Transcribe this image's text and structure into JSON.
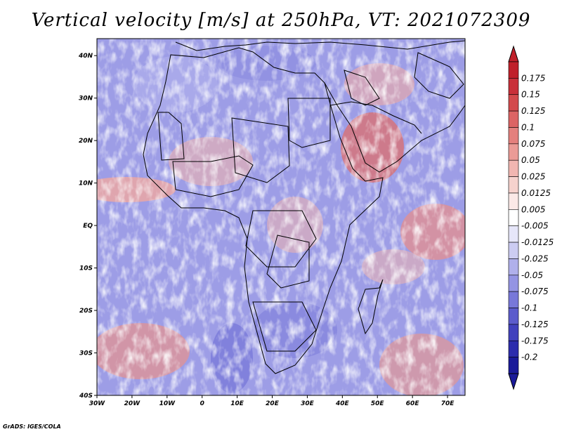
{
  "title": "Vertical velocity [m/s] at 250hPa, VT: 2021072309",
  "credit": "GrADS: IGES/COLA",
  "map": {
    "lat_labels": [
      "40N",
      "30N",
      "20N",
      "10N",
      "EQ",
      "10S",
      "20S",
      "30S",
      "40S"
    ],
    "lon_labels": [
      "30W",
      "20W",
      "10W",
      "0",
      "10E",
      "20E",
      "30E",
      "40E",
      "50E",
      "60E",
      "70E"
    ],
    "lon_range": [
      -30,
      75
    ],
    "lat_range": [
      -40,
      44
    ]
  },
  "colorbar": {
    "labels": [
      "0.175",
      "0.15",
      "0.125",
      "0.1",
      "0.075",
      "0.05",
      "0.025",
      "0.0125",
      "0.005",
      "-0.005",
      "-0.0125",
      "-0.025",
      "-0.05",
      "-0.075",
      "-0.1",
      "-0.125",
      "-0.175",
      "-0.2"
    ],
    "colors": [
      "#c0202a",
      "#c93039",
      "#d34a4c",
      "#dc6464",
      "#e4807d",
      "#eb9b96",
      "#f1b6b1",
      "#f6d2cd",
      "#fbe9e7",
      "#ffffff",
      "#e6e6f9",
      "#ccccf2",
      "#b0b0eb",
      "#9494e3",
      "#7878d9",
      "#5c5ccc",
      "#4141bd",
      "#2c2cad",
      "#1a1a99"
    ]
  }
}
